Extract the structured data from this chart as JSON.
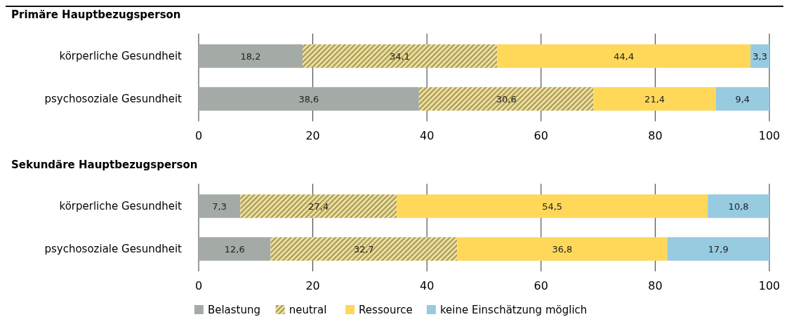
{
  "chart_data": [
    {
      "type": "bar",
      "orientation": "horizontal",
      "stacked": true,
      "title": "Primäre Hauptbezugsperson",
      "categories": [
        "körperliche Gesundheit",
        "psychosoziale Gesundheit"
      ],
      "series": [
        {
          "color": "#a4aba6",
          "values": [
            18.2,
            38.6
          ],
          "value_labels": [
            "18,2",
            "38,6"
          ]
        },
        {
          "color": "#c9bb7c",
          "values": [
            34.1,
            30.6
          ],
          "value_labels": [
            "34,1",
            "30,6"
          ]
        },
        {
          "color": "#ffd85a",
          "values": [
            44.4,
            21.4
          ],
          "value_labels": [
            "44,4",
            "21,4"
          ]
        },
        {
          "color": "#96cbe0",
          "values": [
            3.3,
            9.4
          ],
          "value_labels": [
            "3,3",
            "9,4"
          ]
        }
      ],
      "xlim": [
        0,
        100
      ],
      "xticks": [
        0,
        20,
        40,
        60,
        80,
        100
      ],
      "grid": "x"
    },
    {
      "type": "bar",
      "orientation": "horizontal",
      "stacked": true,
      "title": "Sekundäre Hauptbezugsperson",
      "categories": [
        "körperliche Gesundheit",
        "psychosoziale Gesundheit"
      ],
      "series": [
        {
          "name": "Belastung",
          "color": "#a4aba6",
          "values": [
            7.3,
            12.6
          ],
          "value_labels": [
            "7,3",
            "12,6"
          ]
        },
        {
          "name": "neutral",
          "color": "#c9bb7c",
          "values": [
            27.4,
            32.7
          ],
          "value_labels": [
            "27,4",
            "32,7"
          ]
        },
        {
          "name": "Ressource",
          "color": "#ffd85a",
          "values": [
            54.5,
            36.8
          ],
          "value_labels": [
            "54,5",
            "36,8"
          ]
        },
        {
          "name": "keine Einschätzung möglich",
          "color": "#96cbe0",
          "values": [
            10.8,
            17.9
          ],
          "value_labels": [
            "10,8",
            "17,9"
          ]
        }
      ],
      "xlim": [
        0,
        100
      ],
      "xticks": [
        0,
        20,
        40,
        60,
        80,
        100
      ],
      "grid": "x",
      "legend": "bottom"
    }
  ]
}
